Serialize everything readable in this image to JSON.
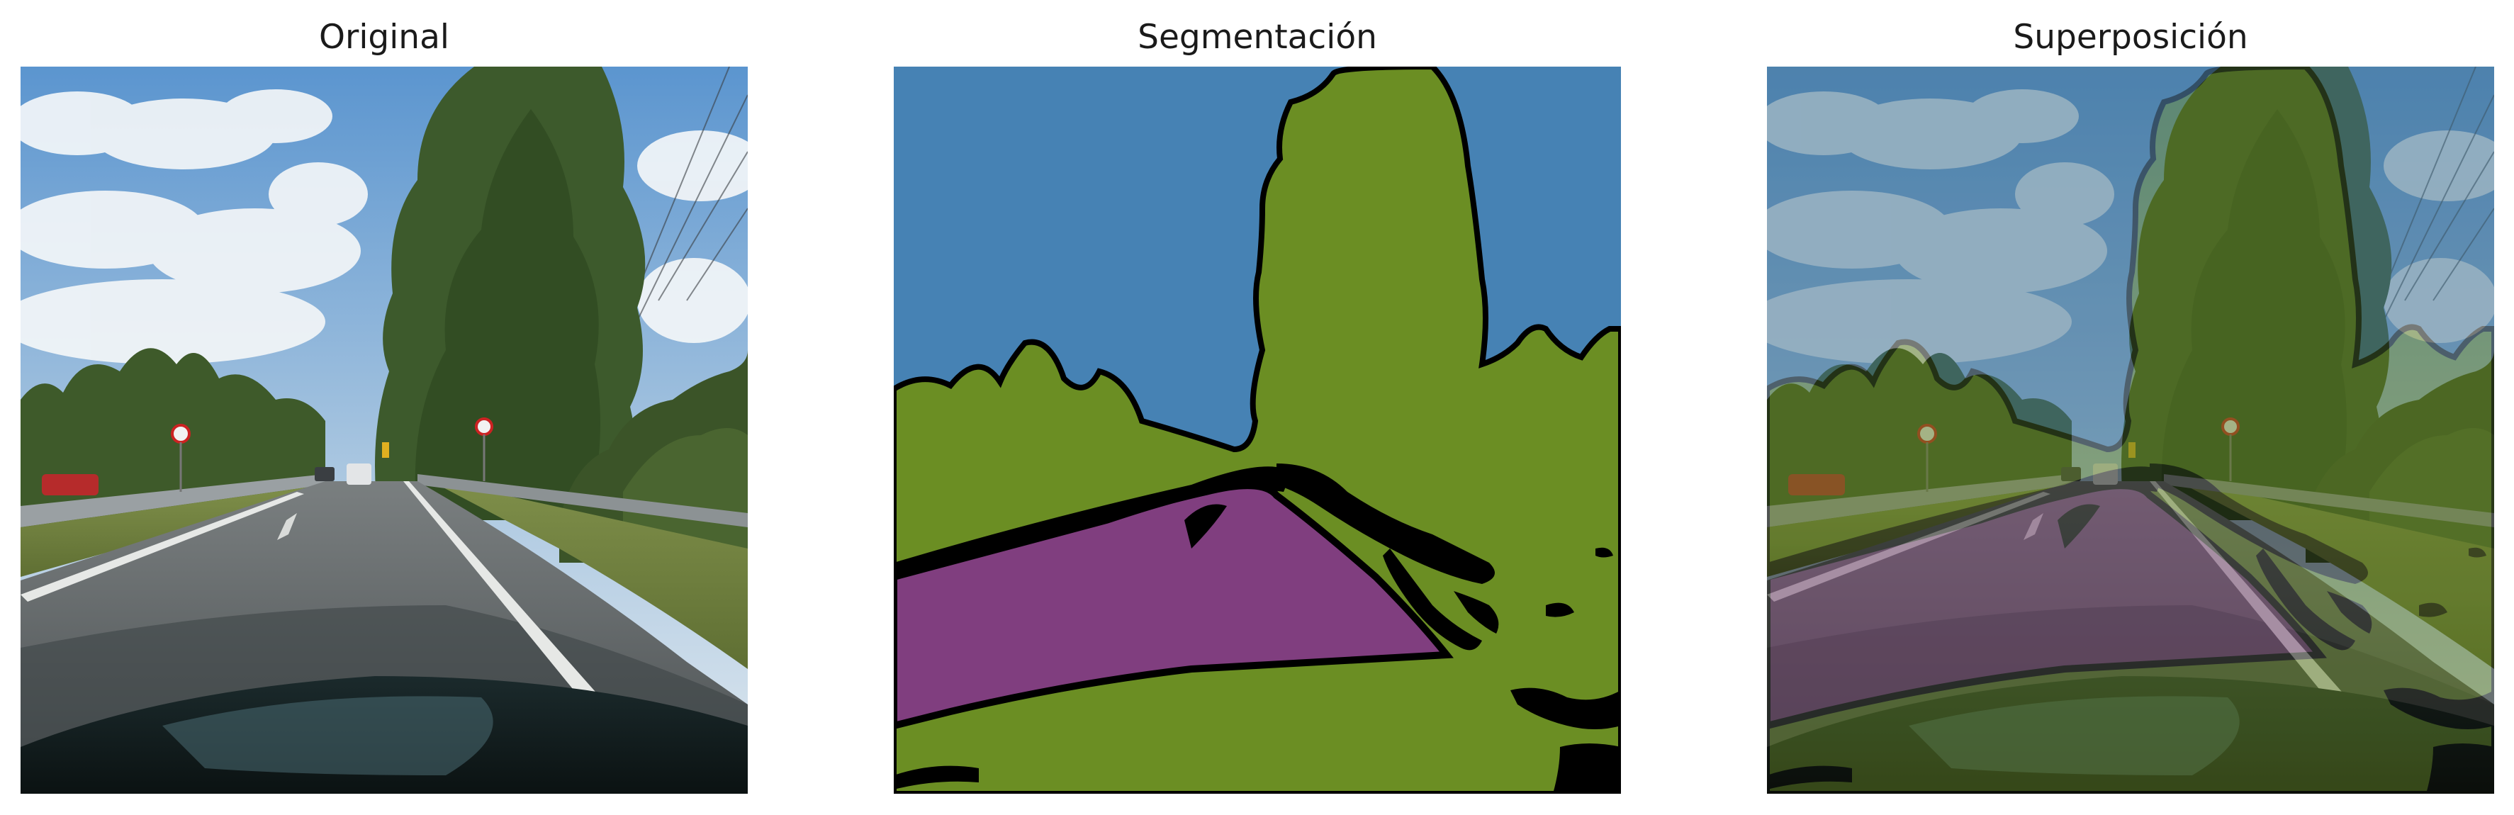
{
  "panels": [
    {
      "title": "Original"
    },
    {
      "title": "Segmentación"
    },
    {
      "title": "Superposición"
    }
  ],
  "colors": {
    "sky_class": "#4682B4",
    "vegetation_class": "#6B8E23",
    "road_class": "#803E7F",
    "unlabeled": "#000000"
  }
}
